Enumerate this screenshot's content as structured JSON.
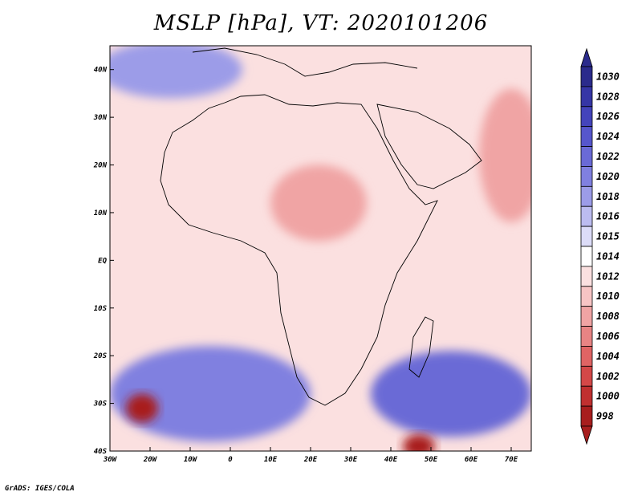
{
  "title": "MSLP [hPa], VT: 2020101206",
  "credit": "GrADS: IGES/COLA",
  "map": {
    "lon_range": [
      -30,
      75
    ],
    "lat_range": [
      -40,
      45
    ],
    "lon_ticks": [
      {
        "value": -30,
        "label": "30W"
      },
      {
        "value": -20,
        "label": "20W"
      },
      {
        "value": -10,
        "label": "10W"
      },
      {
        "value": 0,
        "label": "0"
      },
      {
        "value": 10,
        "label": "10E"
      },
      {
        "value": 20,
        "label": "20E"
      },
      {
        "value": 30,
        "label": "30E"
      },
      {
        "value": 40,
        "label": "40E"
      },
      {
        "value": 50,
        "label": "50E"
      },
      {
        "value": 60,
        "label": "60E"
      },
      {
        "value": 70,
        "label": "70E"
      }
    ],
    "lat_ticks": [
      {
        "value": 40,
        "label": "40N"
      },
      {
        "value": 30,
        "label": "30N"
      },
      {
        "value": 20,
        "label": "20N"
      },
      {
        "value": 10,
        "label": "10N"
      },
      {
        "value": 0,
        "label": "EQ"
      },
      {
        "value": -10,
        "label": "10S"
      },
      {
        "value": -20,
        "label": "20S"
      },
      {
        "value": -30,
        "label": "30S"
      },
      {
        "value": -40,
        "label": "40S"
      }
    ]
  },
  "colorbar": {
    "levels": [
      "1030",
      "1028",
      "1026",
      "1024",
      "1022",
      "1020",
      "1018",
      "1016",
      "1015",
      "1014",
      "1012",
      "1010",
      "1008",
      "1006",
      "1004",
      "1002",
      "1000",
      "998"
    ],
    "colors": [
      "#2b2b8c",
      "#3636a6",
      "#4444bb",
      "#5656cc",
      "#6a6ad6",
      "#8080e0",
      "#9c9ce8",
      "#bcbcf0",
      "#dcdcf8",
      "#ffffff",
      "#fbe0e0",
      "#f7c4c4",
      "#f0a4a4",
      "#e88484",
      "#e06464",
      "#d44848",
      "#c03030",
      "#a81e1e"
    ]
  },
  "fields": [
    {
      "name": "base-field",
      "level": "1012",
      "shape": "rect"
    },
    {
      "name": "subtropical-high-south",
      "level": "1020",
      "lon": -5,
      "lat": -28,
      "rx": 25,
      "ry": 10
    },
    {
      "name": "south-indian-high",
      "level": "1022",
      "lon": 55,
      "lat": -28,
      "rx": 20,
      "ry": 9
    },
    {
      "name": "mediterranean-high",
      "level": "1018",
      "lon": -15,
      "lat": 40,
      "rx": 18,
      "ry": 6
    },
    {
      "name": "arabian-low",
      "level": "1008",
      "lon": 70,
      "lat": 22,
      "rx": 8,
      "ry": 14
    },
    {
      "name": "saharan-low",
      "level": "1008",
      "lon": 22,
      "lat": 12,
      "rx": 12,
      "ry": 8
    },
    {
      "name": "atlantic-cyclone",
      "level": "998",
      "lon": -22,
      "lat": -31,
      "rx": 4,
      "ry": 3
    },
    {
      "name": "indian-cyclone",
      "level": "998",
      "lon": 47,
      "lat": -39,
      "rx": 4,
      "ry": 2.5
    }
  ]
}
